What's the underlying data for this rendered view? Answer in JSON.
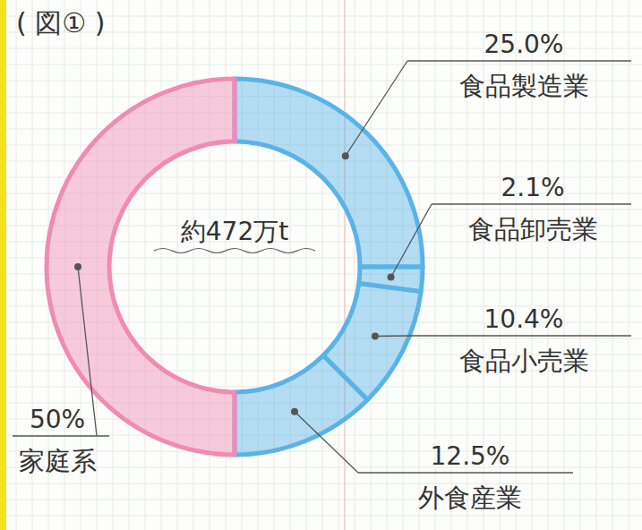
{
  "chart_data": {
    "type": "donut",
    "title": "( 図① )",
    "annotations": [
      "約472万t"
    ],
    "categories": [
      "食品製造業",
      "食品卸売業",
      "食品小売業",
      "外食産業",
      "家庭系"
    ],
    "values": [
      25.0,
      2.1,
      10.4,
      12.5,
      50
    ],
    "value_labels": [
      "25.0%",
      "2.1%",
      "10.4%",
      "12.5%",
      "50%"
    ],
    "colors": [
      "#5ab3e6",
      "#5ab3e6",
      "#5ab3e6",
      "#5ab3e6",
      "#f08bb3"
    ],
    "data_labels": true
  }
}
